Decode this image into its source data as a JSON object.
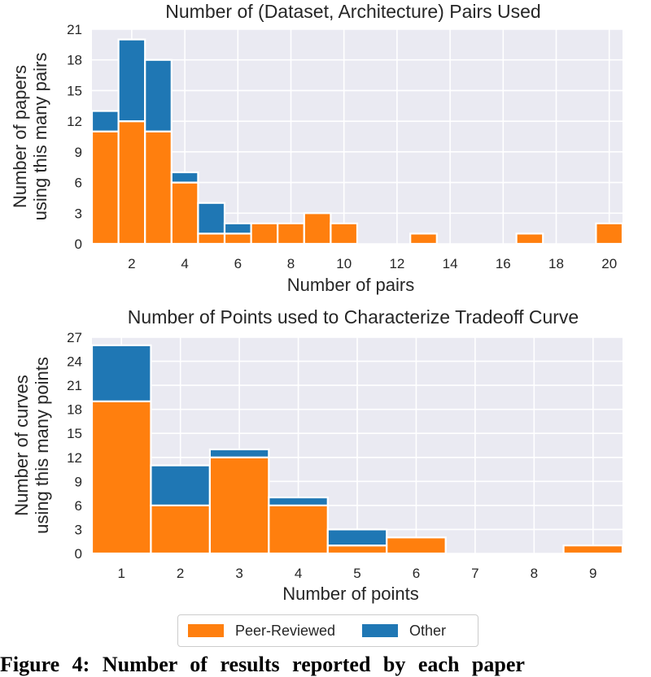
{
  "colors": {
    "peer_reviewed": "#ff7f0e",
    "other": "#1f77b4",
    "background": "#eaeaf2",
    "grid": "#ffffff"
  },
  "chart_data": [
    {
      "type": "bar",
      "stacked": true,
      "title": "Number of (Dataset, Architecture) Pairs Used",
      "xlabel": "Number of pairs",
      "ylabel": "Number of papers\nusing this many pairs",
      "x_ticks": [
        "2",
        "4",
        "6",
        "8",
        "10",
        "12",
        "14",
        "16",
        "18",
        "20"
      ],
      "y_ticks": [
        "0",
        "3",
        "6",
        "9",
        "12",
        "15",
        "18",
        "21"
      ],
      "xlim": [
        0.5,
        20.5
      ],
      "ylim": [
        0,
        21
      ],
      "grid": true,
      "x": [
        1,
        2,
        3,
        4,
        5,
        6,
        7,
        8,
        9,
        10,
        11,
        12,
        13,
        14,
        15,
        16,
        17,
        18,
        19,
        20
      ],
      "series": [
        {
          "name": "Peer-Reviewed",
          "values": [
            11,
            12,
            11,
            6,
            1,
            1,
            2,
            2,
            3,
            2,
            0,
            0,
            1,
            0,
            0,
            0,
            1,
            0,
            0,
            2
          ]
        },
        {
          "name": "Other",
          "values": [
            2,
            8,
            7,
            1,
            3,
            1,
            0,
            0,
            0,
            0,
            0,
            0,
            0,
            0,
            0,
            0,
            0,
            0,
            0,
            0
          ]
        }
      ]
    },
    {
      "type": "bar",
      "stacked": true,
      "title": "Number of Points used to Characterize Tradeoff Curve",
      "xlabel": "Number of points",
      "ylabel": "Number of curves\nusing this many points",
      "x_ticks": [
        "1",
        "2",
        "3",
        "4",
        "5",
        "6",
        "7",
        "8",
        "9"
      ],
      "y_ticks": [
        "0",
        "3",
        "6",
        "9",
        "12",
        "15",
        "18",
        "21",
        "24",
        "27"
      ],
      "xlim": [
        0.5,
        9.5
      ],
      "ylim": [
        0,
        27
      ],
      "grid": true,
      "x": [
        1,
        2,
        3,
        4,
        5,
        6,
        7,
        8,
        9
      ],
      "series": [
        {
          "name": "Peer-Reviewed",
          "values": [
            19,
            6,
            12,
            6,
            1,
            2,
            0,
            0,
            1
          ]
        },
        {
          "name": "Other",
          "values": [
            7,
            5,
            1,
            1,
            2,
            0,
            0,
            0,
            0
          ]
        }
      ]
    }
  ],
  "legend": {
    "items": [
      "Peer-Reviewed",
      "Other"
    ]
  },
  "caption": "Figure 4: Number of results reported by each paper"
}
